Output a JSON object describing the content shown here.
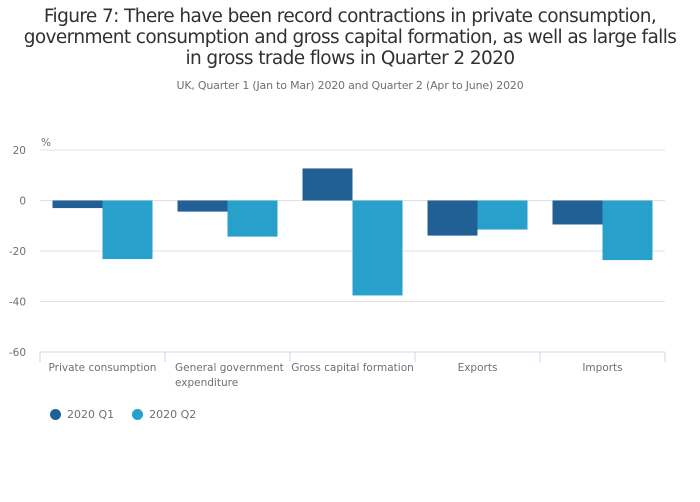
{
  "chart_data": {
    "type": "bar",
    "title": "Figure 7: There have been record contractions in private consumption, government consumption and gross capital formation, as well as large falls in gross trade flows in Quarter 2 2020",
    "title_lines": [
      "Figure 7: There have been record contractions in private consumption,",
      "government consumption and gross capital formation, as well as large falls",
      "in gross trade flows in Quarter 2 2020"
    ],
    "subtitle": "UK, Quarter 1 (Jan to Mar) 2020 and Quarter 2 (Apr to June) 2020",
    "xlabel": "",
    "ylabel": "%",
    "ylim": [
      -60,
      20
    ],
    "yticks": [
      20,
      0,
      -20,
      -40,
      -60
    ],
    "grid": true,
    "legend_position": "bottom-left",
    "categories": [
      [
        "Private consumption"
      ],
      [
        "General government",
        "expenditure"
      ],
      [
        "Gross capital formation"
      ],
      [
        "Exports"
      ],
      [
        "Imports"
      ]
    ],
    "series": [
      {
        "name": "2020 Q1",
        "color": "#206095",
        "values": [
          -3.0,
          -4.4,
          12.7,
          -13.9,
          -9.5
        ]
      },
      {
        "name": "2020 Q2",
        "color": "#27a0cc",
        "values": [
          -23.2,
          -14.3,
          -37.6,
          -11.5,
          -23.6
        ]
      }
    ]
  }
}
